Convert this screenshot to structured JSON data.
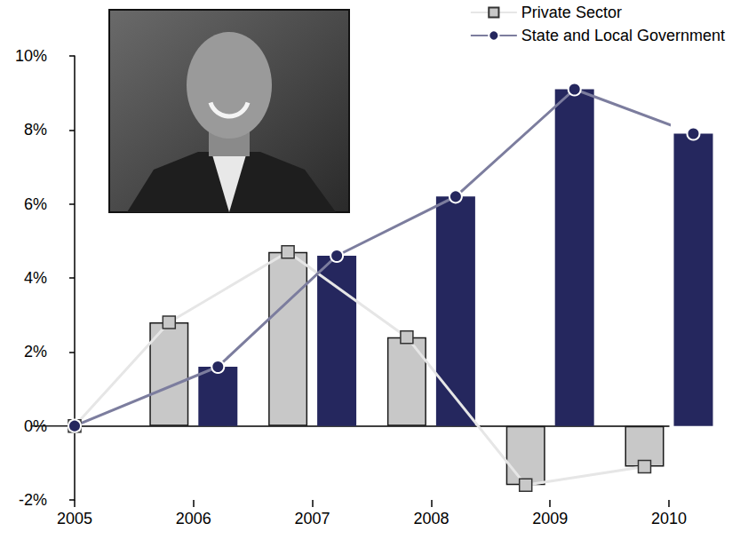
{
  "chart_data": {
    "type": "bar",
    "categories": [
      "2005",
      "2006",
      "2007",
      "2008",
      "2009",
      "2010"
    ],
    "series": [
      {
        "name": "Private Sector",
        "color": "#c8c8c8",
        "marker": "square",
        "line_style": "solid",
        "values": [
          0,
          2.8,
          4.7,
          2.4,
          -1.6,
          -1.1
        ]
      },
      {
        "name": "State and Local Government",
        "color": "#25275e",
        "marker": "circle",
        "line_style": "solid",
        "values": [
          0,
          1.6,
          4.6,
          6.2,
          9.1,
          7.9
        ]
      }
    ],
    "ylim": [
      -2,
      10
    ],
    "yticks": [
      {
        "value": -2,
        "label": "-2%"
      },
      {
        "value": 0,
        "label": "0%"
      },
      {
        "value": 2,
        "label": "2%"
      },
      {
        "value": 4,
        "label": "4%"
      },
      {
        "value": 6,
        "label": "6%"
      },
      {
        "value": 8,
        "label": "8%"
      },
      {
        "value": 10,
        "label": "10%"
      }
    ],
    "grid": false,
    "legend": "upper right"
  }
}
